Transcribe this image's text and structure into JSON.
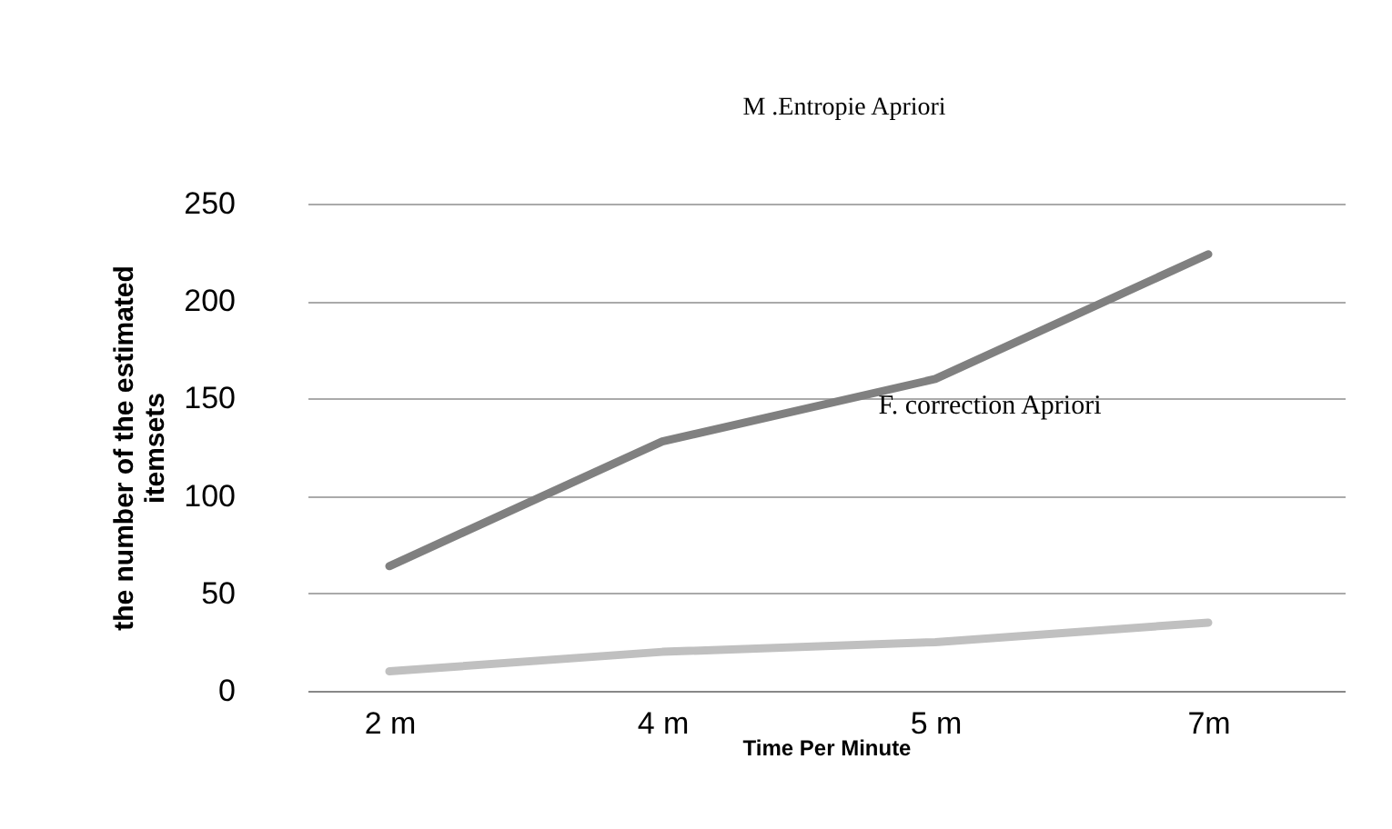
{
  "chart_data": {
    "type": "line",
    "title": "M .Entropie Apriori",
    "xlabel": "Time Per Minute",
    "ylabel": "the number of the estimated itemsets",
    "categories": [
      "2 m",
      "4 m",
      "5 m",
      "7m"
    ],
    "series": [
      {
        "name": "F. correction Apriori",
        "color": "#808080",
        "values": [
          64,
          128,
          160,
          224
        ]
      },
      {
        "color": "#c0c0c0",
        "values": [
          10,
          20,
          25,
          35
        ]
      }
    ],
    "ylim": [
      0,
      250
    ],
    "yticks": [
      0,
      50,
      100,
      150,
      200,
      250
    ],
    "grid": "y",
    "marker": "none",
    "line_style": "solid"
  }
}
